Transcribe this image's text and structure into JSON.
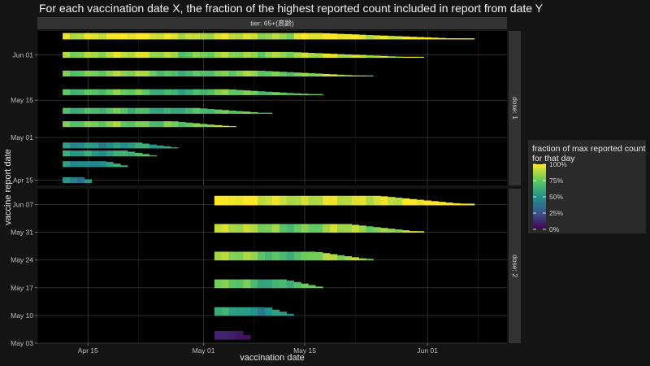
{
  "chart_data": {
    "type": "heatmap",
    "title": "For each vaccination date X, the fraction of the highest reported count included in report from date Y",
    "xlabel": "vaccination date",
    "ylabel": "vaccine report date",
    "facet_column_label": "tier: 65+(高齢)",
    "x_tick_labels": [
      "Apr 15",
      "May 01",
      "May 15",
      "Jun 01"
    ],
    "x_range": [
      "2021-04-08",
      "2021-06-12"
    ],
    "legend": {
      "title_line1": "fraction of max reported count",
      "title_line2": "for that day",
      "labels": [
        "100%",
        "75%",
        "50%",
        "25%",
        "0%"
      ],
      "colorscale": [
        "#440154",
        "#3b528b",
        "#21918c",
        "#5ec962",
        "#fde725"
      ]
    },
    "panels": [
      {
        "label": "dose: 1",
        "y_tick_labels": [
          "Jun 01",
          "May 15",
          "May 01",
          "Apr 15"
        ],
        "y_range": [
          "2021-04-13",
          "2021-06-10"
        ],
        "rows": [
          {
            "report_date": "2021-06-08",
            "x_start": "2021-04-12",
            "x_end": "2021-06-07",
            "value": 0.97
          },
          {
            "report_date": "2021-06-01",
            "x_start": "2021-04-12",
            "x_end": "2021-05-31",
            "value": 0.88
          },
          {
            "report_date": "2021-05-25",
            "x_start": "2021-04-12",
            "x_end": "2021-05-24",
            "value": 0.8
          },
          {
            "report_date": "2021-05-18",
            "x_start": "2021-04-12",
            "x_end": "2021-05-17",
            "value": 0.74
          },
          {
            "report_date": "2021-05-11",
            "x_start": "2021-04-12",
            "x_end": "2021-05-10",
            "value": 0.7
          },
          {
            "report_date": "2021-05-06",
            "x_start": "2021-04-12",
            "x_end": "2021-05-05",
            "value": 0.8
          },
          {
            "report_date": "2021-04-28",
            "x_start": "2021-04-12",
            "x_end": "2021-04-27",
            "value": 0.55
          },
          {
            "report_date": "2021-04-25",
            "x_start": "2021-04-12",
            "x_end": "2021-04-24",
            "value": 0.62
          },
          {
            "report_date": "2021-04-21",
            "x_start": "2021-04-12",
            "x_end": "2021-04-20",
            "value": 0.55
          },
          {
            "report_date": "2021-04-15",
            "x_start": "2021-04-12",
            "x_end": "2021-04-15",
            "value": 0.52
          }
        ]
      },
      {
        "label": "dose: 2",
        "y_tick_labels": [
          "Jun 07",
          "May 31",
          "May 24",
          "May 17",
          "May 10",
          "May 03"
        ],
        "y_range": [
          "2021-05-03",
          "2021-06-11"
        ],
        "rows": [
          {
            "report_date": "2021-06-08",
            "x_start": "2021-05-03",
            "x_end": "2021-06-07",
            "value": 0.97
          },
          {
            "report_date": "2021-06-01",
            "x_start": "2021-05-03",
            "x_end": "2021-05-31",
            "value": 0.85
          },
          {
            "report_date": "2021-05-25",
            "x_start": "2021-05-03",
            "x_end": "2021-05-24",
            "value": 0.8
          },
          {
            "report_date": "2021-05-18",
            "x_start": "2021-05-03",
            "x_end": "2021-05-17",
            "value": 0.72
          },
          {
            "report_date": "2021-05-11",
            "x_start": "2021-05-03",
            "x_end": "2021-05-13",
            "value": 0.55
          },
          {
            "report_date": "2021-05-05",
            "x_start": "2021-05-03",
            "x_end": "2021-05-07",
            "value": 0.08
          }
        ]
      }
    ]
  }
}
